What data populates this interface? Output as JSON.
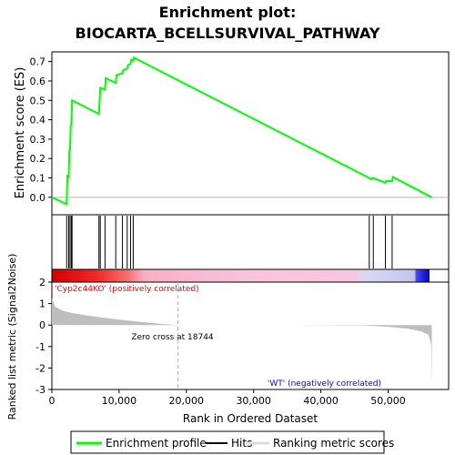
{
  "title_line1": "Enrichment plot:",
  "title_line2": "BIOCARTA_BCELLSURVIVAL_PATHWAY",
  "colors": {
    "enrichment": "#00ff00",
    "hits": "#000000",
    "metric": "#bebebe",
    "positive_label": "#ff0000",
    "negative_label": "#0000ff",
    "zero_line": "#b4b4b4",
    "border": "#000000"
  },
  "chart_data": {
    "type": "line",
    "xlabel": "Rank in Ordered Dataset",
    "x_ticks": [
      "0",
      "10,000",
      "20,000",
      "30,000",
      "40,000",
      "50,000"
    ],
    "x_tick_values": [
      0,
      10000,
      20000,
      30000,
      40000,
      50000
    ],
    "xlim": [
      0,
      59000
    ],
    "es_panel": {
      "ylabel": "Enrichment score (ES)",
      "ylim": [
        -0.09,
        0.75
      ],
      "y_ticks": [
        "0.0",
        "0.1",
        "0.2",
        "0.3",
        "0.4",
        "0.5",
        "0.6",
        "0.7"
      ],
      "y_tick_values": [
        0.0,
        0.1,
        0.2,
        0.3,
        0.4,
        0.5,
        0.6,
        0.7
      ],
      "series": [
        {
          "name": "Enrichment profile",
          "x": [
            0,
            2200,
            2300,
            2500,
            2600,
            2700,
            2800,
            2900,
            3000,
            7000,
            7100,
            7200,
            7900,
            8000,
            9500,
            9600,
            10500,
            10600,
            11200,
            11300,
            11700,
            11800,
            12100,
            12200,
            47200,
            47300,
            47800,
            49600,
            49700,
            50600,
            50700,
            56500
          ],
          "y": [
            0.0,
            -0.035,
            0.11,
            0.105,
            0.24,
            0.245,
            0.37,
            0.375,
            0.5,
            0.43,
            0.5,
            0.565,
            0.555,
            0.615,
            0.59,
            0.63,
            0.64,
            0.655,
            0.665,
            0.68,
            0.69,
            0.71,
            0.705,
            0.72,
            0.1,
            0.095,
            0.1,
            0.075,
            0.085,
            0.082,
            0.105,
            0.0
          ]
        }
      ]
    },
    "hits": {
      "name": "Hits",
      "x": [
        2200,
        2500,
        2700,
        2900,
        3000,
        7000,
        7200,
        7900,
        9500,
        10500,
        11200,
        11700,
        12100,
        47200,
        47800,
        49600,
        50600
      ]
    },
    "ranking_panel": {
      "ylabel": "Ranked list metric (Signal2Noise)",
      "ylim": [
        -3,
        2
      ],
      "y_ticks": [
        "2",
        "1",
        "0",
        "-1",
        "-2",
        "-3"
      ],
      "y_tick_values": [
        2,
        1,
        0,
        -1,
        -2,
        -3
      ],
      "series": [
        {
          "name": "Ranking metric scores",
          "x": [
            0,
            500,
            1500,
            3000,
            5000,
            7500,
            10000,
            13000,
            16000,
            18744,
            25000,
            35000,
            46000,
            50000,
            53000,
            55000,
            56000,
            56400,
            56500
          ],
          "y": [
            1.25,
            0.85,
            0.68,
            0.56,
            0.46,
            0.35,
            0.25,
            0.15,
            0.06,
            0.0,
            -0.0,
            -0.0,
            -0.02,
            -0.08,
            -0.17,
            -0.3,
            -0.45,
            -0.9,
            -2.75
          ]
        }
      ],
      "zero_cross_label": "Zero cross at 18744",
      "zero_cross_x": 18744,
      "positive_label": "'Cyp2c44KO' (positively correlated)",
      "negative_label": "'WT' (negatively correlated)"
    },
    "legend": {
      "placement": "bottom",
      "items": [
        "Enrichment profile",
        "Hits",
        "Ranking metric scores"
      ]
    }
  }
}
